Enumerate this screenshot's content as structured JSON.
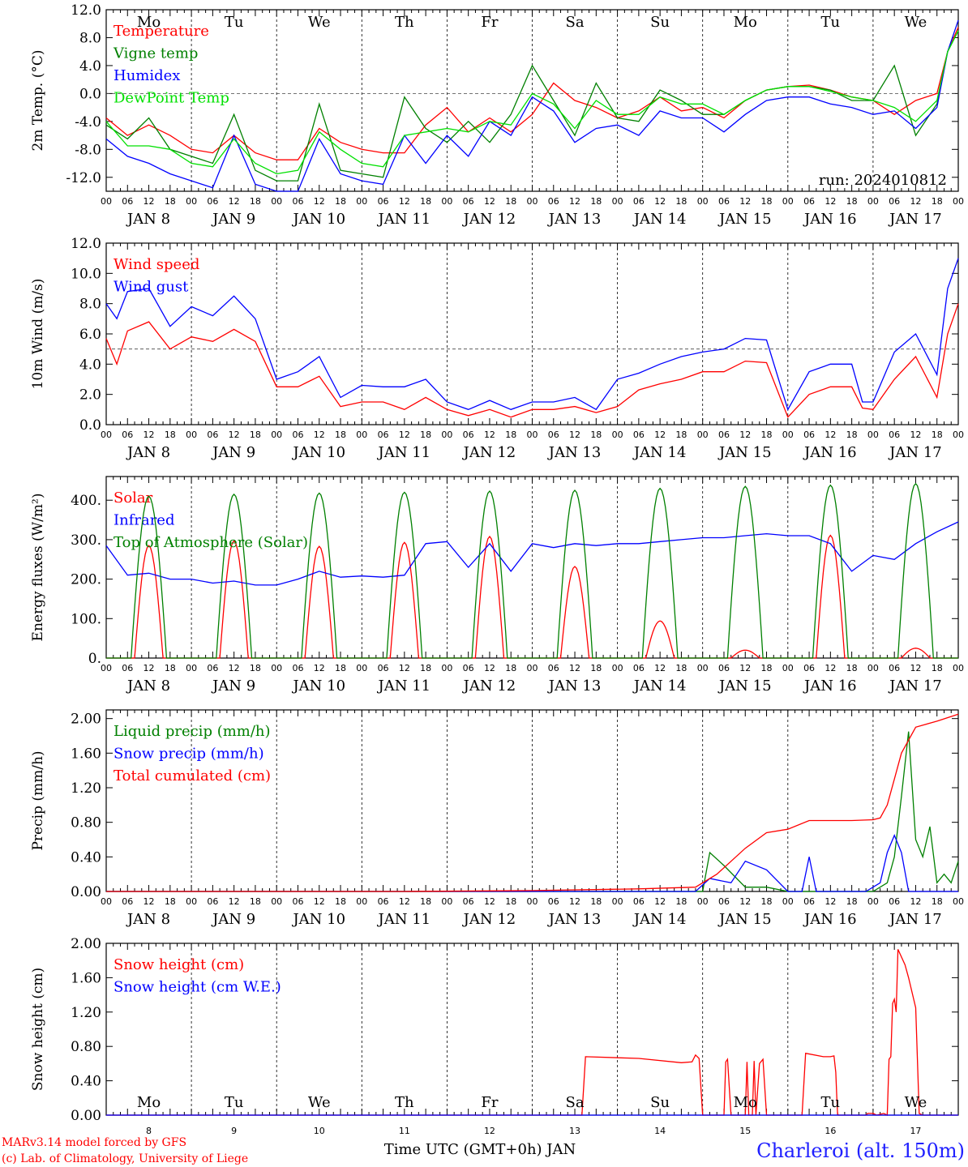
{
  "run_label": "run: 2024010812",
  "station": "Charleroi (alt. 150m)",
  "credit_line1": "MARv3.14 model forced by GFS",
  "credit_line2": "(c) Lab. of Climatology, University of Liege",
  "x_axis_label": "Time UTC (GMT+0h) JAN",
  "colors": {
    "red": "#ff0000",
    "green": "#008000",
    "blue": "#0000ff",
    "lightgreen": "#00e000"
  },
  "day_names": [
    "Mo",
    "Tu",
    "We",
    "Th",
    "Fr",
    "Sa",
    "Su",
    "Mo",
    "Tu",
    "We"
  ],
  "day_dates": [
    "8",
    "9",
    "10",
    "11",
    "12",
    "13",
    "14",
    "15",
    "16",
    "17"
  ],
  "date_labels": [
    "JAN  8",
    "JAN  9",
    "JAN 10",
    "JAN 11",
    "JAN 12",
    "JAN 13",
    "JAN 14",
    "JAN 15",
    "JAN 16",
    "JAN 17"
  ],
  "hour_ticks": [
    "00",
    "06",
    "12",
    "18"
  ],
  "chart_data": [
    {
      "type": "line",
      "ylabel": "2m Temp. (°C)",
      "ylim": [
        -14,
        12
      ],
      "yticks": [
        "12.0",
        "8.0",
        "4.0",
        "0.0",
        "-4.0",
        "-8.0",
        "-12.0"
      ],
      "ytick_values": [
        12,
        8,
        4,
        0,
        -4,
        -8,
        -12
      ],
      "ref_line": 0,
      "x_unit": "hours since Jan 8 00 UTC",
      "series": [
        {
          "name": "Temperature",
          "color": "red",
          "x": [
            0,
            6,
            12,
            18,
            24,
            30,
            36,
            42,
            48,
            54,
            60,
            66,
            72,
            78,
            84,
            90,
            96,
            102,
            108,
            114,
            120,
            126,
            132,
            138,
            144,
            150,
            156,
            162,
            168,
            174,
            180,
            186,
            192,
            198,
            204,
            210,
            216,
            222,
            228,
            234,
            237,
            240
          ],
          "y": [
            -3.5,
            -6,
            -4.5,
            -6,
            -8,
            -8.5,
            -6,
            -8.5,
            -9.5,
            -9.5,
            -5,
            -7,
            -8,
            -8.5,
            -8.5,
            -4.5,
            -2,
            -5.5,
            -3.5,
            -5.5,
            -3,
            1.5,
            -1,
            -2,
            -3.5,
            -2.5,
            -0.5,
            -2.5,
            -2,
            -3.5,
            -1,
            0.5,
            1,
            1.2,
            0.5,
            -0.5,
            -1,
            -3,
            -1,
            0,
            6,
            9.5
          ]
        },
        {
          "name": "Vigne temp",
          "color": "green",
          "x": [
            0,
            6,
            12,
            18,
            24,
            30,
            36,
            42,
            48,
            54,
            60,
            66,
            72,
            78,
            84,
            90,
            96,
            102,
            108,
            114,
            120,
            126,
            132,
            138,
            144,
            150,
            156,
            162,
            168,
            174,
            180,
            186,
            192,
            198,
            204,
            210,
            216,
            222,
            228,
            234,
            237,
            240
          ],
          "y": [
            -4.5,
            -6.5,
            -3.5,
            -8,
            -9,
            -10,
            -3,
            -11,
            -12.5,
            -12.5,
            -1.5,
            -11,
            -11.5,
            -12,
            -0.5,
            -5,
            -7,
            -4,
            -7,
            -3,
            4,
            -1,
            -6,
            1.5,
            -3.5,
            -4,
            0.5,
            -1,
            -3,
            -3,
            -1,
            0.5,
            1,
            1,
            0.5,
            -1,
            -1,
            4,
            -6,
            -1.5,
            6,
            9
          ]
        },
        {
          "name": "Humidex",
          "color": "blue",
          "x": [
            0,
            6,
            12,
            18,
            24,
            30,
            36,
            42,
            48,
            54,
            60,
            66,
            72,
            78,
            84,
            90,
            96,
            102,
            108,
            114,
            120,
            126,
            132,
            138,
            144,
            150,
            156,
            162,
            168,
            174,
            180,
            186,
            192,
            198,
            204,
            210,
            216,
            222,
            228,
            234,
            237,
            240
          ],
          "y": [
            -6.5,
            -9,
            -10,
            -11.5,
            -12.5,
            -13.5,
            -6,
            -13,
            -14,
            -14,
            -6.5,
            -11.5,
            -12.5,
            -13,
            -6,
            -10,
            -6,
            -9,
            -4,
            -6,
            -0.5,
            -2.5,
            -7,
            -5,
            -4.5,
            -6,
            -2.5,
            -3.5,
            -3.5,
            -5.5,
            -3,
            -1,
            -0.5,
            -0.5,
            -1.5,
            -2,
            -3,
            -2.5,
            -5,
            -2,
            6,
            10.5
          ]
        },
        {
          "name": "DewPoint Temp",
          "color": "lightgreen",
          "x": [
            0,
            6,
            12,
            18,
            24,
            30,
            36,
            42,
            48,
            54,
            60,
            66,
            72,
            78,
            84,
            90,
            96,
            102,
            108,
            114,
            120,
            126,
            132,
            138,
            144,
            150,
            156,
            162,
            168,
            174,
            180,
            186,
            192,
            198,
            204,
            210,
            216,
            222,
            228,
            234,
            237,
            240
          ],
          "y": [
            -4,
            -7.5,
            -7.5,
            -8,
            -10,
            -10.5,
            -6.5,
            -10,
            -11.5,
            -11,
            -5.5,
            -8,
            -10,
            -10.5,
            -6,
            -5.5,
            -5,
            -5.5,
            -4,
            -4.5,
            0,
            -1.5,
            -5,
            -1,
            -3,
            -3,
            -0.5,
            -1.5,
            -1.5,
            -3,
            -1,
            0.5,
            1,
            1,
            0.3,
            -0.5,
            -1,
            -2,
            -4,
            -1,
            6,
            9
          ]
        }
      ]
    },
    {
      "type": "line",
      "ylabel": "10m Wind (m/s)",
      "ylim": [
        0,
        12
      ],
      "yticks": [
        "12.0",
        "10.0",
        "8.0",
        "6.0",
        "4.0",
        "2.0",
        "0.0"
      ],
      "ytick_values": [
        12,
        10,
        8,
        6,
        4,
        2,
        0
      ],
      "ref_line": 5,
      "x_unit": "hours since Jan 8 00 UTC",
      "series": [
        {
          "name": "Wind speed",
          "color": "red",
          "x": [
            0,
            3,
            6,
            12,
            18,
            24,
            30,
            36,
            42,
            48,
            54,
            60,
            66,
            72,
            78,
            84,
            90,
            96,
            102,
            108,
            114,
            120,
            126,
            132,
            138,
            144,
            150,
            156,
            162,
            168,
            174,
            180,
            186,
            192,
            198,
            204,
            210,
            213,
            216,
            222,
            228,
            234,
            237,
            240
          ],
          "y": [
            5.7,
            4,
            6.2,
            6.8,
            5,
            5.8,
            5.5,
            6.3,
            5.5,
            2.5,
            2.5,
            3.2,
            1.2,
            1.5,
            1.5,
            1,
            1.8,
            1,
            0.6,
            1,
            0.5,
            1,
            1,
            1.2,
            0.8,
            1.2,
            2.3,
            2.7,
            3,
            3.5,
            3.5,
            4.2,
            4.1,
            0.5,
            2,
            2.5,
            2.5,
            1.1,
            1,
            3,
            4.5,
            1.8,
            6,
            8
          ]
        },
        {
          "name": "Wind gust",
          "color": "blue",
          "x": [
            0,
            3,
            6,
            12,
            18,
            24,
            30,
            36,
            42,
            48,
            54,
            60,
            66,
            72,
            78,
            84,
            90,
            96,
            102,
            108,
            114,
            120,
            126,
            132,
            138,
            144,
            150,
            156,
            162,
            168,
            174,
            180,
            186,
            192,
            198,
            204,
            210,
            213,
            216,
            222,
            228,
            234,
            237,
            240
          ],
          "y": [
            8,
            7,
            8.8,
            9,
            6.5,
            7.8,
            7.2,
            8.5,
            7,
            3,
            3.5,
            4.5,
            1.8,
            2.6,
            2.5,
            2.5,
            3,
            1.5,
            1,
            1.6,
            1,
            1.5,
            1.5,
            1.8,
            1,
            3,
            3.4,
            4,
            4.5,
            4.8,
            5,
            5.7,
            5.6,
            1,
            3.5,
            4,
            4,
            1.5,
            1.5,
            4.8,
            6,
            3.3,
            9,
            11
          ]
        }
      ]
    },
    {
      "type": "line",
      "ylabel": "Energy fluxes (W/m²)",
      "ylim": [
        0,
        460
      ],
      "yticks": [
        "400.",
        "300.",
        "200.",
        "100.",
        "0."
      ],
      "ytick_values": [
        400,
        300,
        200,
        100,
        0
      ],
      "x_unit": "hours since Jan 8 00 UTC",
      "series": [
        {
          "name": "Solar",
          "color": "red",
          "peak_hour": 12,
          "day_peaks": [
            285,
            297,
            283,
            293,
            308,
            232,
            94,
            20,
            311,
            25
          ]
        },
        {
          "name": "Infrared",
          "color": "blue",
          "x": [
            0,
            6,
            12,
            18,
            24,
            30,
            36,
            42,
            48,
            54,
            60,
            66,
            72,
            78,
            84,
            90,
            96,
            102,
            108,
            114,
            120,
            126,
            132,
            138,
            144,
            150,
            156,
            162,
            168,
            174,
            180,
            186,
            192,
            198,
            204,
            210,
            216,
            222,
            228,
            234,
            240
          ],
          "y": [
            285,
            210,
            215,
            200,
            200,
            190,
            195,
            185,
            185,
            200,
            220,
            205,
            208,
            205,
            210,
            290,
            295,
            230,
            290,
            220,
            290,
            280,
            290,
            285,
            290,
            290,
            295,
            300,
            305,
            305,
            310,
            315,
            310,
            310,
            290,
            220,
            260,
            250,
            290,
            320,
            345
          ]
        },
        {
          "name": "Top of Atmosphere (Solar)",
          "color": "green",
          "peak_hour": 12,
          "day_peaks": [
            410,
            415,
            418,
            420,
            423,
            425,
            430,
            435,
            438,
            442
          ]
        }
      ]
    },
    {
      "type": "line",
      "ylabel": "Precip (mm/h)",
      "ylim": [
        0,
        2.1
      ],
      "yticks": [
        "2.00",
        "1.60",
        "1.20",
        "0.80",
        "0.40",
        "0.00"
      ],
      "ytick_values": [
        2.0,
        1.6,
        1.2,
        0.8,
        0.4,
        0.0
      ],
      "x_unit": "hours since Jan 8 00 UTC",
      "series": [
        {
          "name": "Liquid precip (mm/h)",
          "color": "green",
          "x": [
            0,
            168,
            170,
            174,
            180,
            186,
            192,
            200,
            216,
            220,
            222,
            224,
            226,
            228,
            230,
            232,
            234,
            236,
            238,
            240
          ],
          "y": [
            0,
            0,
            0.45,
            0.3,
            0.05,
            0.05,
            0,
            0,
            0,
            0.1,
            0.4,
            1.1,
            1.85,
            0.6,
            0.4,
            0.75,
            0.1,
            0.2,
            0.1,
            0.35
          ]
        },
        {
          "name": "Snow precip (mm/h)",
          "color": "blue",
          "x": [
            0,
            166,
            170,
            176,
            180,
            186,
            192,
            196,
            198,
            200,
            214,
            218,
            220,
            222,
            224,
            226,
            232,
            240
          ],
          "y": [
            0,
            0,
            0.15,
            0.1,
            0.35,
            0.25,
            0,
            0,
            0.4,
            0,
            0,
            0.1,
            0.45,
            0.65,
            0.45,
            0,
            0,
            0
          ]
        },
        {
          "name": "Total cumulated (cm)",
          "color": "red",
          "x": [
            0,
            84,
            120,
            150,
            166,
            172,
            180,
            186,
            192,
            198,
            204,
            210,
            216,
            218,
            220,
            222,
            224,
            228,
            234,
            240
          ],
          "y": [
            0,
            0,
            0.01,
            0.03,
            0.05,
            0.2,
            0.5,
            0.68,
            0.72,
            0.82,
            0.82,
            0.82,
            0.83,
            0.85,
            1.0,
            1.3,
            1.6,
            1.9,
            1.97,
            2.05
          ]
        }
      ]
    },
    {
      "type": "line",
      "ylabel": "Snow height (cm)",
      "ylim": [
        0,
        2.0
      ],
      "yticks": [
        "2.00",
        "1.60",
        "1.20",
        "0.80",
        "0.40",
        "0.00"
      ],
      "ytick_values": [
        2.0,
        1.6,
        1.2,
        0.8,
        0.4,
        0.0
      ],
      "x_unit": "hours since Jan 8 00 UTC",
      "series": [
        {
          "name": "Snow height (cm)",
          "color": "red",
          "x": [
            0,
            134,
            135,
            150,
            162,
            165,
            166,
            167,
            168,
            174,
            174.5,
            175,
            176,
            176.5,
            178,
            180,
            180.5,
            181,
            182,
            182.5,
            183,
            184,
            185,
            186,
            196,
            197,
            202,
            204,
            205,
            205.5,
            205.8,
            206,
            206.2,
            207,
            210,
            212,
            214,
            214.5,
            216,
            217,
            219,
            220,
            220.5,
            221,
            221.5,
            222,
            222.5,
            223,
            225,
            226,
            228,
            229,
            230,
            240
          ],
          "y": [
            0,
            0,
            0.68,
            0.66,
            0.61,
            0.62,
            0.7,
            0.66,
            0,
            0,
            0.62,
            0.65,
            0,
            0,
            0,
            0,
            0.62,
            0,
            0,
            0.63,
            0,
            0.6,
            0.65,
            0,
            0,
            0.72,
            0.68,
            0.68,
            0.69,
            0.5,
            0.2,
            0.02,
            0,
            0,
            0,
            0,
            0,
            0.02,
            0.02,
            0,
            0.02,
            0,
            0.65,
            0.68,
            1.3,
            1.35,
            1.2,
            1.93,
            1.75,
            1.6,
            1.25,
            0.02,
            0,
            0
          ]
        },
        {
          "name": "Snow height (cm W.E.)",
          "color": "blue",
          "x": [
            0,
            240
          ],
          "y": [
            0,
            0
          ]
        }
      ]
    }
  ]
}
